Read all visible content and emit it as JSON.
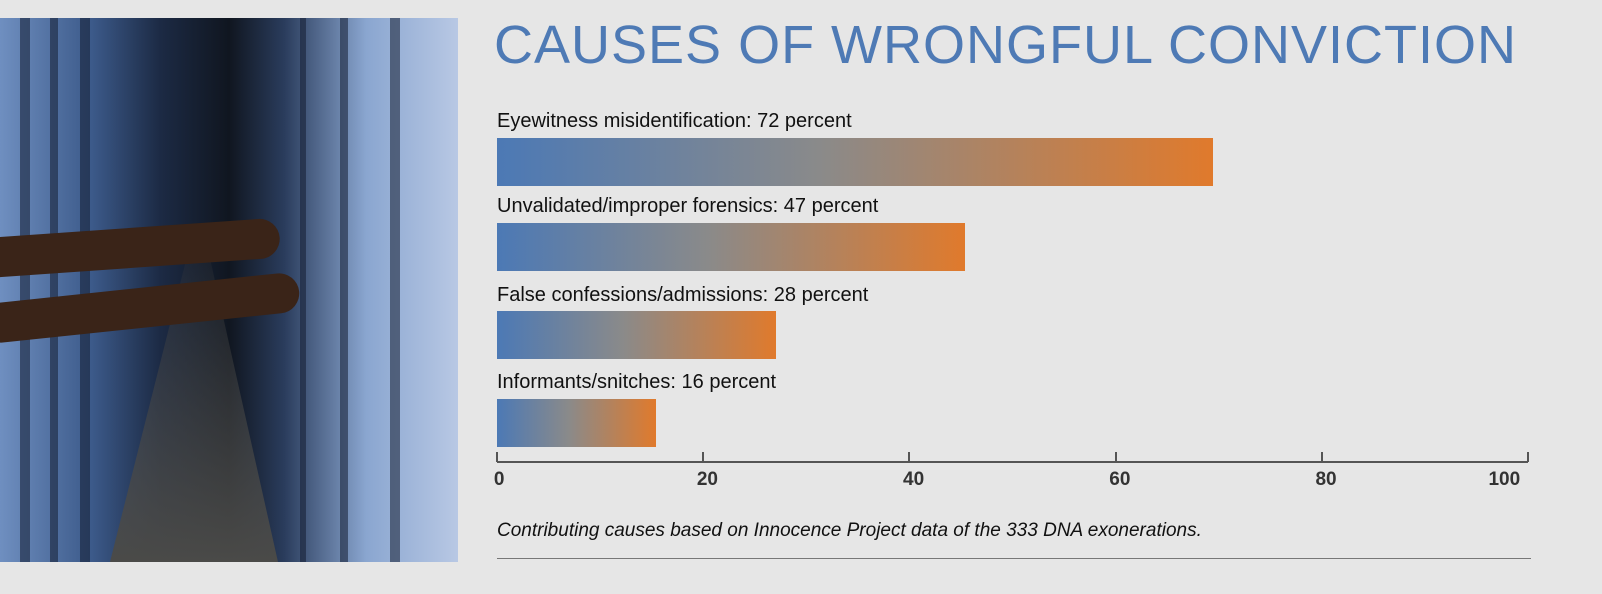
{
  "chart_data": {
    "type": "bar",
    "orientation": "horizontal",
    "title": "CAUSES OF WRONGFUL CONVICTION",
    "categories": [
      "Eyewitness misidentification",
      "Unvalidated/improper forensics",
      "False confessions/admissions",
      "Informants/snitches"
    ],
    "values": [
      72,
      47,
      28,
      16
    ],
    "labels": [
      "Eyewitness misidentification: 72 percent",
      "Unvalidated/improper forensics: 47 percent",
      "False confessions/admissions: 28 percent",
      "Informants/snitches: 16 percent"
    ],
    "xlim": [
      0,
      100
    ],
    "ticks": [
      "0",
      "20",
      "40",
      "60",
      "80",
      "100"
    ],
    "tick_values": [
      0,
      20,
      40,
      60,
      80,
      100
    ],
    "caption": "Contributing causes based on Innocence Project data of the 333 DNA exonerations.",
    "colors": {
      "title": "#4e7ab5",
      "bar_start": "#4c79b5",
      "bar_end": "#e07a2c"
    }
  }
}
